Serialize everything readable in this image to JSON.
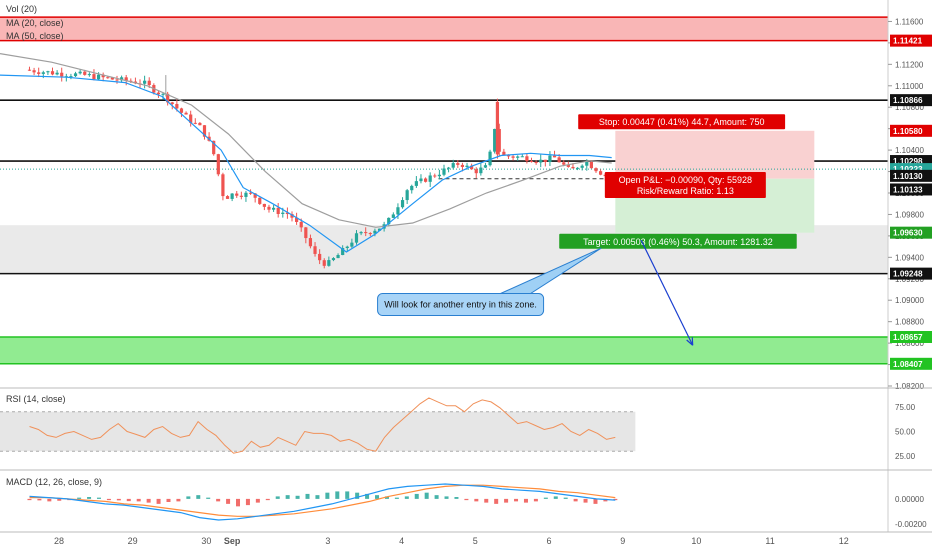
{
  "colors": {
    "up": "#26a69a",
    "down": "#ef5350",
    "ma20": "#2196f3",
    "ma50": "#9e9e9e",
    "redZone": "#f8a9a9",
    "redLine": "#e00000",
    "greenZone": "#7ee87e",
    "greenLine": "#22c322",
    "grayZone": "#e6e6e6",
    "stopFill": "#f9d1d1",
    "targetFill": "#d5efd5",
    "rsi": "#f0915a",
    "macdLine": "#2196f3",
    "signalLine": "#ff8c3a",
    "teal": "#26a69a"
  },
  "legend": {
    "vol": "Vol (20)",
    "ma20": "MA (20, close)",
    "ma50": "MA (50, close)",
    "rsi": "RSI (14, close)",
    "macd": "MACD (12, 26, close, 9)"
  },
  "chart_data": [
    {
      "type": "candlestick",
      "pane": "price",
      "ylim": [
        1.082,
        1.118
      ],
      "y_ticks": [
        "1.11800",
        "1.11600",
        "1.11400",
        "1.11200",
        "1.11000",
        "1.10800",
        "1.10600",
        "1.10400",
        "1.10200",
        "1.10000",
        "1.09800",
        "1.09600",
        "1.09400",
        "1.09200",
        "1.09000",
        "1.08800",
        "1.08600",
        "1.08400",
        "1.08200"
      ],
      "x_ticks": [
        {
          "label": "28",
          "x": 0.4
        },
        {
          "label": "29",
          "x": 1.4
        },
        {
          "label": "30",
          "x": 2.4
        },
        {
          "label": "Sep",
          "x": 2.75
        },
        {
          "label": "3",
          "x": 4.05
        },
        {
          "label": "4",
          "x": 5.05
        },
        {
          "label": "5",
          "x": 6.05
        },
        {
          "label": "6",
          "x": 7.05
        },
        {
          "label": "9",
          "x": 8.05
        },
        {
          "label": "10",
          "x": 9.05
        },
        {
          "label": "11",
          "x": 10.05
        },
        {
          "label": "12",
          "x": 11.05
        }
      ],
      "x_range": [
        -0.4,
        11.65
      ],
      "price_path": [
        [
          0.0,
          1.1115
        ],
        [
          0.4,
          1.1112
        ],
        [
          0.8,
          1.111
        ],
        [
          1.2,
          1.1106
        ],
        [
          1.6,
          1.1103
        ],
        [
          1.9,
          1.109
        ],
        [
          2.2,
          1.107
        ],
        [
          2.4,
          1.106
        ],
        [
          2.55,
          1.104
        ],
        [
          2.7,
          1.0995
        ],
        [
          2.85,
          1.1
        ],
        [
          3.1,
          1.0998
        ],
        [
          3.3,
          1.0985
        ],
        [
          3.6,
          1.098
        ],
        [
          3.8,
          1.096
        ],
        [
          3.95,
          1.094
        ],
        [
          4.1,
          1.0933
        ],
        [
          4.3,
          1.0945
        ],
        [
          4.5,
          1.096
        ],
        [
          4.9,
          1.097
        ],
        [
          5.2,
          1.1005
        ],
        [
          5.5,
          1.1015
        ],
        [
          5.9,
          1.1028
        ],
        [
          6.1,
          1.102
        ],
        [
          6.3,
          1.1025
        ],
        [
          6.35,
          1.107
        ],
        [
          6.45,
          1.1035
        ],
        [
          6.8,
          1.1033
        ],
        [
          7.0,
          1.103
        ],
        [
          7.2,
          1.1033
        ],
        [
          7.4,
          1.102
        ],
        [
          7.6,
          1.103
        ],
        [
          7.8,
          1.102
        ],
        [
          7.9,
          1.1015
        ]
      ],
      "ma20_path": [
        [
          -0.4,
          1.111
        ],
        [
          0.5,
          1.1108
        ],
        [
          1.3,
          1.1103
        ],
        [
          1.8,
          1.109
        ],
        [
          2.2,
          1.1065
        ],
        [
          2.6,
          1.104
        ],
        [
          2.9,
          1.1005
        ],
        [
          3.3,
          1.099
        ],
        [
          3.8,
          1.097
        ],
        [
          4.3,
          1.0945
        ],
        [
          4.7,
          1.0962
        ],
        [
          5.2,
          1.099
        ],
        [
          5.6,
          1.1012
        ],
        [
          6.0,
          1.1025
        ],
        [
          6.4,
          1.1035
        ],
        [
          6.8,
          1.1037
        ],
        [
          7.2,
          1.1035
        ],
        [
          7.6,
          1.1035
        ],
        [
          7.9,
          1.1033
        ]
      ],
      "ma50_path": [
        [
          -0.4,
          1.113
        ],
        [
          0.3,
          1.1122
        ],
        [
          1.0,
          1.111
        ],
        [
          1.6,
          1.11
        ],
        [
          2.2,
          1.1082
        ],
        [
          2.7,
          1.1055
        ],
        [
          3.2,
          1.102
        ],
        [
          3.7,
          1.099
        ],
        [
          4.2,
          1.0975
        ],
        [
          4.7,
          1.0968
        ],
        [
          5.2,
          1.0972
        ],
        [
          5.7,
          1.0985
        ],
        [
          6.2,
          1.1
        ],
        [
          6.7,
          1.1012
        ],
        [
          7.2,
          1.1025
        ],
        [
          7.6,
          1.103
        ],
        [
          7.9,
          1.1028
        ]
      ],
      "zones": [
        {
          "name": "resistance-zone",
          "from": 1.11421,
          "to": 1.1164,
          "color": "redZone",
          "edge": "redLine"
        },
        {
          "name": "demand-zone",
          "from": 1.09248,
          "to": 1.097,
          "color": "grayZone"
        },
        {
          "name": "support-zone",
          "from": 1.08407,
          "to": 1.08657,
          "color": "greenZone",
          "edge": "greenLine"
        }
      ],
      "hlines": [
        1.10866,
        1.10298,
        1.09248
      ],
      "position": {
        "x_start": 7.95,
        "x_end": 10.65,
        "entry": 1.10133,
        "stop": 1.1058,
        "target": 1.0963,
        "dash_from_x": 5.55,
        "dash_to_x": 8.3
      },
      "price_labels": [
        {
          "text": "1.11421",
          "price": 1.11421,
          "bg": "#e00000",
          "fg": "#ffffff"
        },
        {
          "text": "1.10866",
          "price": 1.10866,
          "bg": "#111111",
          "fg": "#ffffff"
        },
        {
          "text": "1.10580",
          "price": 1.1058,
          "bg": "#e00000",
          "fg": "#ffffff"
        },
        {
          "text": "1.10298",
          "price": 1.10298,
          "bg": "#111111",
          "fg": "#ffffff"
        },
        {
          "text": "1.10223",
          "price": 1.10223,
          "bg": "#26a69a",
          "fg": "#ffffff"
        },
        {
          "text": "1.10130",
          "price": 1.1016,
          "bg": "#111111",
          "fg": "#ffffff"
        },
        {
          "text": "1.10133",
          "price": 1.10033,
          "bg": "#111111",
          "fg": "#ffffff"
        },
        {
          "text": "1.09630",
          "price": 1.0963,
          "bg": "#22a022",
          "fg": "#ffffff"
        },
        {
          "text": "1.09248",
          "price": 1.09248,
          "bg": "#111111",
          "fg": "#ffffff"
        },
        {
          "text": "1.08657",
          "price": 1.08657,
          "bg": "#22c322",
          "fg": "#ffffff"
        },
        {
          "text": "1.08407",
          "price": 1.08407,
          "bg": "#22c322",
          "fg": "#ffffff"
        }
      ],
      "annotations": [
        {
          "name": "stop-label",
          "text": "Stop: 0.00447 (0.41%) 44.7, Amount: 750",
          "price": 1.10665,
          "x": 8.85,
          "bg": "#e00000",
          "fg": "#ffffff"
        },
        {
          "name": "pnl-label",
          "text": "Open P&L: −0.00090, Qty: 55928",
          "line2": "Risk/Reward Ratio: 1.13",
          "price": 1.10075,
          "x": 8.9,
          "bg": "#e00000",
          "fg": "#ffffff"
        },
        {
          "name": "target-label",
          "text": "Target: 0.00503 (0.46%) 50.3, Amount: 1281.32",
          "price": 1.0955,
          "x": 8.8,
          "bg": "#22a022",
          "fg": "#ffffff"
        }
      ],
      "callout": {
        "text": "Will look for another entry in this zone.",
        "x": 5.85,
        "price": 1.0896
      },
      "arrow": {
        "from_x": 8.3,
        "from_price": 1.0956,
        "to_x": 9.0,
        "to_price": 1.0858
      }
    },
    {
      "type": "line",
      "pane": "rsi",
      "ylim": [
        15,
        90
      ],
      "y_ticks": [
        "75.00",
        "50.00",
        "25.00"
      ],
      "band": [
        30,
        70
      ],
      "series": [
        {
          "name": "RSI",
          "values": [
            55,
            52,
            46,
            44,
            48,
            50,
            46,
            42,
            44,
            52,
            58,
            50,
            47,
            44,
            52,
            55,
            48,
            44,
            46,
            60,
            52,
            46,
            36,
            28,
            30,
            40,
            34,
            36,
            44,
            40,
            36,
            50,
            48,
            48,
            46,
            40,
            42,
            38,
            32,
            30,
            44,
            54,
            62,
            70,
            78,
            84,
            80,
            76,
            76,
            70,
            78,
            82,
            80,
            74,
            66,
            58,
            60,
            56,
            52,
            54,
            58,
            50,
            46,
            52,
            48,
            42,
            44
          ]
        }
      ],
      "x_range": [
        0,
        7.95
      ]
    },
    {
      "type": "bar",
      "pane": "macd",
      "ylim": [
        -0.0025,
        0.002
      ],
      "y_ticks": [
        "0.00000",
        "-0.00200"
      ],
      "histogram": [
        -0.0001,
        -0.00012,
        -0.0002,
        -0.00015,
        -0.0001,
        0.0001,
        0.00015,
        0.0001,
        -0.0001,
        -0.00012,
        -0.00018,
        -0.0002,
        -0.0003,
        -0.0004,
        -0.00025,
        -0.0002,
        0.0002,
        0.0003,
        0.0001,
        -0.0002,
        -0.0004,
        -0.0006,
        -0.0005,
        -0.0003,
        -0.0001,
        0.0002,
        0.0003,
        0.00025,
        0.0004,
        0.0003,
        0.0005,
        0.0006,
        0.0006,
        0.0005,
        0.0004,
        0.0003,
        0.0002,
        0.0001,
        0.0002,
        0.0004,
        0.0005,
        0.0003,
        0.0002,
        0.00015,
        -0.0001,
        -0.0002,
        -0.0003,
        -0.0004,
        -0.0003,
        -0.0002,
        -0.0003,
        -0.0002,
        0.0001,
        0.0002,
        0.0001,
        -0.0002,
        -0.0003,
        -0.0004,
        -0.0002,
        -0.0001
      ],
      "macd": [
        0.0002,
        0.0001,
        0.0,
        -0.0002,
        -0.0004,
        -0.0005,
        -0.0007,
        -0.0009,
        -0.0011,
        -0.0015,
        -0.0017,
        -0.0016,
        -0.0014,
        -0.0012,
        -0.001,
        -0.0007,
        -0.0004,
        0.0,
        0.0004,
        0.0008,
        0.001,
        0.0011,
        0.0012,
        0.0011,
        0.001,
        0.0008,
        0.0007,
        0.0006,
        0.0004,
        0.0002,
        0.0,
        -0.0001
      ],
      "signal": [
        0.0001,
        0.0001,
        0.0,
        -0.0001,
        -0.0002,
        -0.0004,
        -0.0005,
        -0.0007,
        -0.0009,
        -0.0011,
        -0.0013,
        -0.0014,
        -0.0014,
        -0.0013,
        -0.0012,
        -0.001,
        -0.0008,
        -0.0005,
        -0.0002,
        0.0002,
        0.0005,
        0.0008,
        0.001,
        0.0011,
        0.0011,
        0.001,
        0.0009,
        0.0008,
        0.0006,
        0.0005,
        0.0003,
        0.0001
      ],
      "x_range": [
        0,
        7.95
      ]
    }
  ]
}
